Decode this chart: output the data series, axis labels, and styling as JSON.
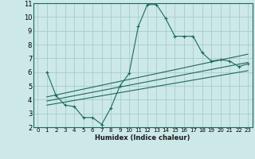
{
  "xlabel": "Humidex (Indice chaleur)",
  "bg_color": "#cce8e8",
  "grid_color": "#aacccc",
  "line_color": "#1a6b5a",
  "xlim": [
    -0.5,
    23.5
  ],
  "ylim": [
    2,
    11
  ],
  "xticks": [
    0,
    1,
    2,
    3,
    4,
    5,
    6,
    7,
    8,
    9,
    10,
    11,
    12,
    13,
    14,
    15,
    16,
    17,
    18,
    19,
    20,
    21,
    22,
    23
  ],
  "yticks": [
    2,
    3,
    4,
    5,
    6,
    7,
    8,
    9,
    10,
    11
  ],
  "series1_x": [
    1,
    2,
    3,
    4,
    5,
    6,
    7,
    8,
    9,
    10,
    11,
    12,
    13,
    14,
    15,
    16,
    17,
    18,
    19,
    20,
    21,
    22,
    23
  ],
  "series1_y": [
    6.0,
    4.3,
    3.6,
    3.5,
    2.7,
    2.7,
    2.2,
    3.4,
    5.0,
    5.9,
    9.3,
    10.9,
    10.9,
    9.9,
    8.6,
    8.6,
    8.6,
    7.4,
    6.8,
    6.9,
    6.8,
    6.4,
    6.6
  ],
  "series2_x": [
    1,
    23
  ],
  "series2_y": [
    4.2,
    7.3
  ],
  "series3_x": [
    1,
    23
  ],
  "series3_y": [
    3.9,
    6.7
  ],
  "series4_x": [
    1,
    23
  ],
  "series4_y": [
    3.6,
    6.1
  ]
}
